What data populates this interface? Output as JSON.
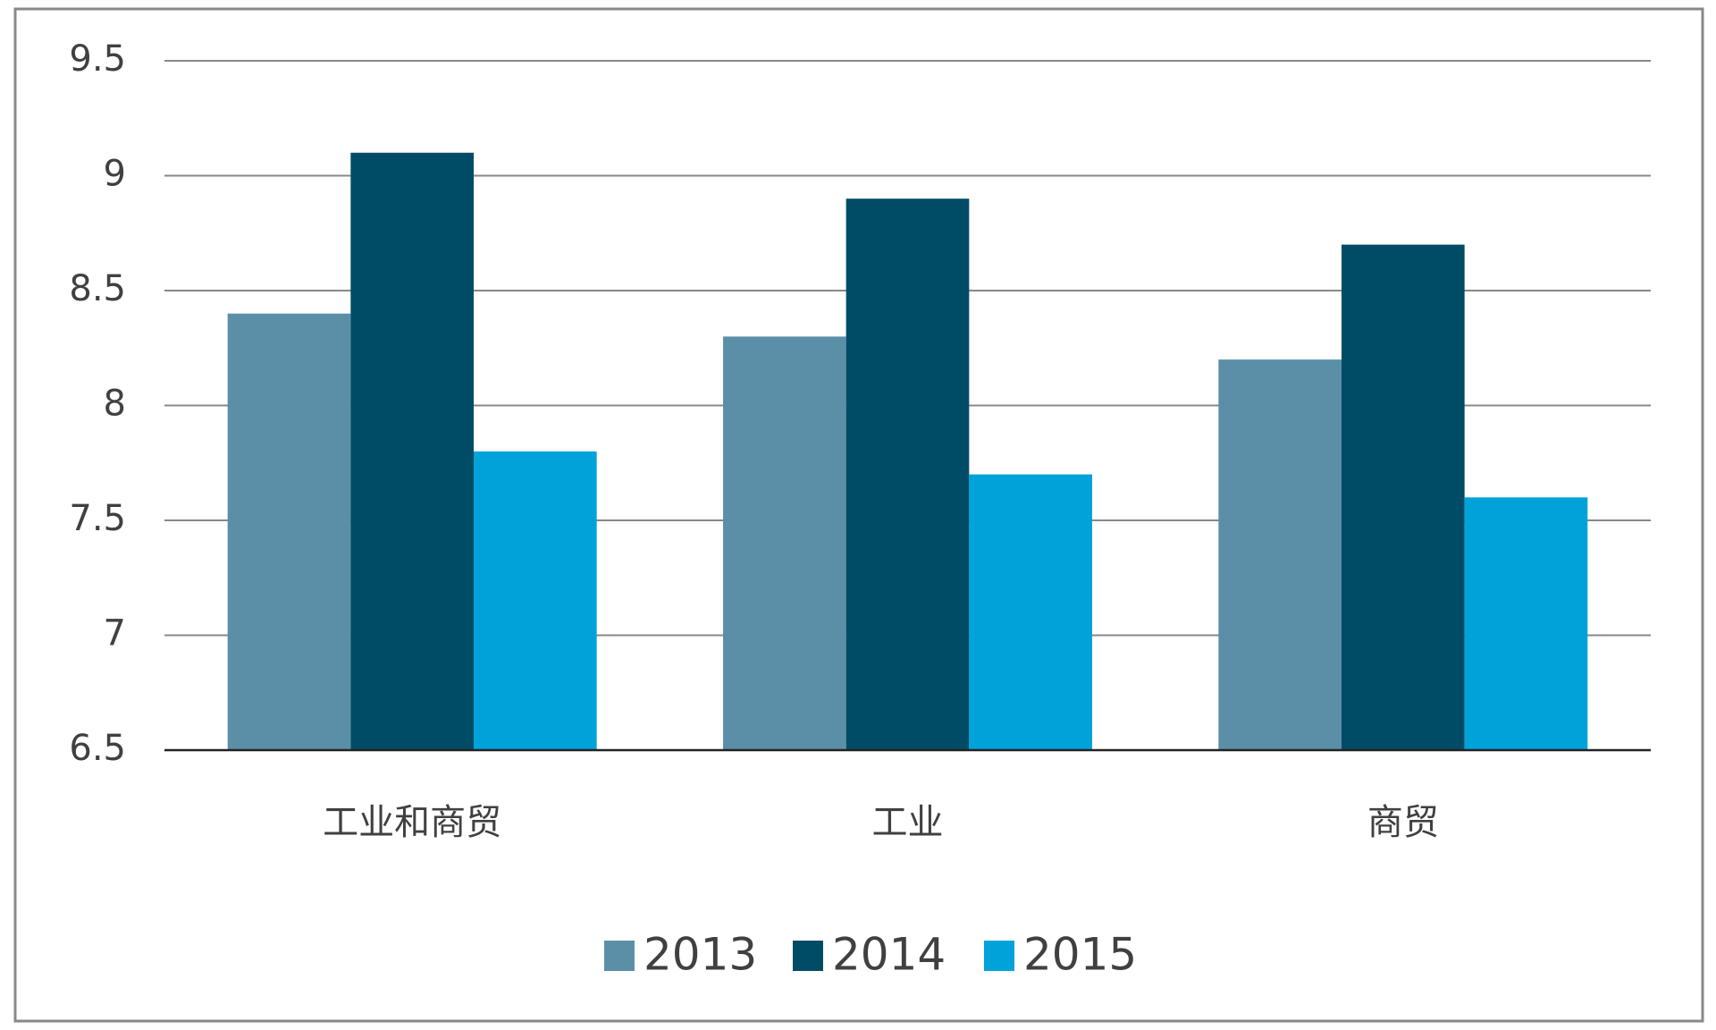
{
  "chart_data": {
    "type": "bar",
    "categories": [
      "工业和商贸",
      "工业",
      "商贸"
    ],
    "series": [
      {
        "name": "2013",
        "color": "#5b8fa8",
        "values": [
          8.4,
          8.3,
          8.2
        ]
      },
      {
        "name": "2014",
        "color": "#004c66",
        "values": [
          9.1,
          8.9,
          8.7
        ]
      },
      {
        "name": "2015",
        "color": "#00a3d9",
        "values": [
          7.8,
          7.7,
          7.6
        ]
      }
    ],
    "ylim": [
      6.5,
      9.5
    ],
    "yticks": [
      6.5,
      7,
      7.5,
      8,
      8.5,
      9,
      9.5
    ],
    "grid": true,
    "legend": "bottom"
  }
}
